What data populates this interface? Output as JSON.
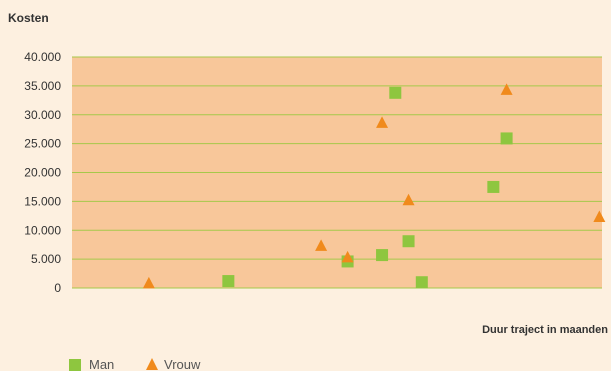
{
  "chart_data": {
    "type": "scatter",
    "ylabel": "Kosten",
    "xlabel": "Duur traject in maanden",
    "ylim": [
      0,
      40000
    ],
    "xlim": [
      0,
      20
    ],
    "yticks": [
      0,
      5000,
      10000,
      15000,
      20000,
      25000,
      30000,
      35000,
      40000
    ],
    "ytick_labels": [
      "0",
      "5.000",
      "10.000",
      "15.000",
      "20.000",
      "25.000",
      "30.000",
      "35.000",
      "40.000"
    ],
    "grid": "horizontal",
    "legend_position": "bottom-left",
    "colors": {
      "plot_background": "#f8c79a",
      "page_background": "#fdf0e0",
      "gridline": "#a6c84a",
      "man": "#8ec63f",
      "vrouw": "#f08a1c"
    },
    "series": [
      {
        "name": "Man",
        "marker": "square",
        "points": [
          {
            "x": 5.9,
            "y": 1200
          },
          {
            "x": 10.4,
            "y": 4600
          },
          {
            "x": 11.7,
            "y": 5700
          },
          {
            "x": 12.2,
            "y": 33800
          },
          {
            "x": 12.7,
            "y": 8100
          },
          {
            "x": 13.2,
            "y": 1000
          },
          {
            "x": 15.9,
            "y": 17500
          },
          {
            "x": 16.4,
            "y": 25900
          }
        ]
      },
      {
        "name": "Vrouw",
        "marker": "triangle",
        "points": [
          {
            "x": 2.9,
            "y": 800
          },
          {
            "x": 9.4,
            "y": 7300
          },
          {
            "x": 10.4,
            "y": 5300
          },
          {
            "x": 11.7,
            "y": 28600
          },
          {
            "x": 12.7,
            "y": 15200
          },
          {
            "x": 16.4,
            "y": 34300
          },
          {
            "x": 19.9,
            "y": 12300
          }
        ]
      }
    ]
  }
}
